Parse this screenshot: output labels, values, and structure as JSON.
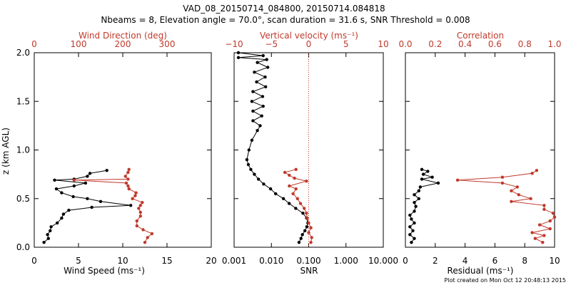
{
  "title": {
    "line1": "VAD_08_20150714_084800, 20150714.084818",
    "line2": "Nbeams = 8, Elevation angle = 70.0°, scan duration = 31.6 s, SNR Threshold = 0.008"
  },
  "footer": "Plot created on Mon Oct 12 20:48:13 2015",
  "colors": {
    "black": "#000000",
    "red": "#c0392b",
    "dotted_red": "#c0392b"
  },
  "chart_data": [
    {
      "type": "line",
      "panel": "wind",
      "ylabel": "z (km AGL)",
      "ylim": [
        0,
        2
      ],
      "yticks": [
        "0.0",
        "0.5",
        "1.0",
        "1.5",
        "2.0"
      ],
      "bottom_axis": {
        "label": "Wind Speed (ms⁻¹)",
        "lim": [
          0,
          20
        ],
        "ticks": [
          "0",
          "5",
          "10",
          "15",
          "20"
        ]
      },
      "top_axis": {
        "label": "Wind Direction (deg)",
        "lim": [
          0,
          400
        ],
        "ticks": [
          "0",
          "100",
          "200",
          "300"
        ]
      },
      "series": [
        {
          "axis": "bottom",
          "color": "#000000",
          "points": [
            [
              1.1,
              0.05
            ],
            [
              1.6,
              0.09
            ],
            [
              1.5,
              0.13
            ],
            [
              1.8,
              0.17
            ],
            [
              1.9,
              0.21
            ],
            [
              2.6,
              0.25
            ],
            [
              3.1,
              0.3
            ],
            [
              3.3,
              0.34
            ],
            [
              3.9,
              0.38
            ],
            [
              6.5,
              0.41
            ],
            [
              10.9,
              0.43
            ],
            [
              7.5,
              0.47
            ],
            [
              6.0,
              0.5
            ],
            [
              4.4,
              0.52
            ],
            [
              3.1,
              0.56
            ],
            [
              2.5,
              0.6
            ],
            [
              4.5,
              0.63
            ],
            [
              5.8,
              0.66
            ],
            [
              2.3,
              0.69
            ],
            [
              4.5,
              0.7
            ],
            [
              6.0,
              0.73
            ],
            [
              6.3,
              0.76
            ],
            [
              8.2,
              0.79
            ]
          ]
        },
        {
          "axis": "top",
          "color": "#c0392b",
          "points": [
            [
              250,
              0.05
            ],
            [
              256,
              0.1
            ],
            [
              266,
              0.14
            ],
            [
              246,
              0.18
            ],
            [
              232,
              0.22
            ],
            [
              232,
              0.27
            ],
            [
              240,
              0.32
            ],
            [
              240,
              0.36
            ],
            [
              236,
              0.4
            ],
            [
              240,
              0.43
            ],
            [
              244,
              0.46
            ],
            [
              222,
              0.5
            ],
            [
              228,
              0.53
            ],
            [
              230,
              0.56
            ],
            [
              214,
              0.6
            ],
            [
              212,
              0.63
            ],
            [
              208,
              0.66
            ],
            [
              90,
              0.69
            ],
            [
              212,
              0.7
            ],
            [
              206,
              0.73
            ],
            [
              212,
              0.77
            ],
            [
              214,
              0.8
            ]
          ]
        }
      ]
    },
    {
      "type": "line",
      "panel": "vertical",
      "ylim": [
        0,
        2
      ],
      "bottom_axis": {
        "label": "SNR",
        "scale": "log",
        "lim": [
          0.001,
          10
        ],
        "ticks": [
          "0.001",
          "0.010",
          "0.100",
          "1.000",
          "10.000"
        ]
      },
      "top_axis": {
        "label": "Vertical velocity (ms⁻¹)",
        "lim": [
          -10,
          10
        ],
        "ticks": [
          "−10",
          "−5",
          "0",
          "5",
          "10"
        ]
      },
      "reference_line": {
        "axis": "top",
        "value": 0,
        "style": "dotted"
      },
      "series": [
        {
          "axis": "bottom",
          "color": "#000000",
          "points": [
            [
              0.055,
              0.05
            ],
            [
              0.062,
              0.09
            ],
            [
              0.068,
              0.13
            ],
            [
              0.079,
              0.17
            ],
            [
              0.089,
              0.21
            ],
            [
              0.095,
              0.25
            ],
            [
              0.088,
              0.3
            ],
            [
              0.07,
              0.35
            ],
            [
              0.045,
              0.4
            ],
            [
              0.03,
              0.45
            ],
            [
              0.021,
              0.5
            ],
            [
              0.013,
              0.55
            ],
            [
              0.0095,
              0.6
            ],
            [
              0.0062,
              0.65
            ],
            [
              0.0045,
              0.7
            ],
            [
              0.0035,
              0.75
            ],
            [
              0.0028,
              0.8
            ],
            [
              0.0024,
              0.85
            ],
            [
              0.0022,
              0.9
            ],
            [
              0.0025,
              1.0
            ],
            [
              0.003,
              1.1
            ],
            [
              0.0042,
              1.2
            ],
            [
              0.005,
              1.25
            ],
            [
              0.0032,
              1.3
            ],
            [
              0.0055,
              1.35
            ],
            [
              0.0032,
              1.4
            ],
            [
              0.006,
              1.45
            ],
            [
              0.003,
              1.5
            ],
            [
              0.0058,
              1.55
            ],
            [
              0.0032,
              1.6
            ],
            [
              0.007,
              1.65
            ],
            [
              0.004,
              1.7
            ],
            [
              0.0068,
              1.75
            ],
            [
              0.0035,
              1.8
            ],
            [
              0.008,
              1.85
            ],
            [
              0.0042,
              1.9
            ],
            [
              0.0075,
              1.93
            ],
            [
              0.0013,
              1.95
            ],
            [
              0.006,
              1.97
            ],
            [
              0.0013,
              2.0
            ]
          ]
        },
        {
          "axis": "top",
          "color": "#c0392b",
          "points": [
            [
              0.3,
              0.05
            ],
            [
              0.4,
              0.1
            ],
            [
              0.0,
              0.15
            ],
            [
              0.3,
              0.2
            ],
            [
              0.0,
              0.25
            ],
            [
              -0.2,
              0.3
            ],
            [
              -0.3,
              0.35
            ],
            [
              -0.6,
              0.4
            ],
            [
              -1.1,
              0.45
            ],
            [
              -1.5,
              0.5
            ],
            [
              -2.1,
              0.55
            ],
            [
              -1.7,
              0.6
            ],
            [
              -2.6,
              0.63
            ],
            [
              -0.3,
              0.68
            ],
            [
              -1.9,
              0.71
            ],
            [
              -2.6,
              0.74
            ],
            [
              -3.2,
              0.77
            ],
            [
              -1.7,
              0.8
            ]
          ]
        }
      ]
    },
    {
      "type": "line",
      "panel": "correlation",
      "ylim": [
        0,
        2
      ],
      "bottom_axis": {
        "label": "Residual (ms⁻¹)",
        "lim": [
          0,
          10
        ],
        "ticks": [
          "0",
          "2",
          "4",
          "6",
          "8",
          "10"
        ]
      },
      "top_axis": {
        "label": "Correlation",
        "lim": [
          0,
          1
        ],
        "ticks": [
          "0.0",
          "0.2",
          "0.4",
          "0.6",
          "0.8",
          "1.0"
        ]
      },
      "series": [
        {
          "axis": "bottom",
          "color": "#000000",
          "points": [
            [
              0.4,
              0.05
            ],
            [
              0.6,
              0.09
            ],
            [
              0.3,
              0.13
            ],
            [
              0.5,
              0.17
            ],
            [
              0.3,
              0.21
            ],
            [
              0.6,
              0.25
            ],
            [
              0.4,
              0.29
            ],
            [
              0.3,
              0.33
            ],
            [
              0.6,
              0.37
            ],
            [
              0.7,
              0.42
            ],
            [
              0.6,
              0.46
            ],
            [
              0.9,
              0.5
            ],
            [
              0.6,
              0.54
            ],
            [
              0.9,
              0.58
            ],
            [
              1.0,
              0.62
            ],
            [
              2.2,
              0.66
            ],
            [
              1.1,
              0.7
            ],
            [
              1.8,
              0.72
            ],
            [
              1.2,
              0.75
            ],
            [
              1.5,
              0.78
            ],
            [
              1.1,
              0.8
            ]
          ]
        },
        {
          "axis": "top",
          "color": "#c0392b",
          "points": [
            [
              0.92,
              0.05
            ],
            [
              0.87,
              0.09
            ],
            [
              0.93,
              0.12
            ],
            [
              0.85,
              0.15
            ],
            [
              0.97,
              0.19
            ],
            [
              0.9,
              0.23
            ],
            [
              0.97,
              0.27
            ],
            [
              1.0,
              0.31
            ],
            [
              0.99,
              0.35
            ],
            [
              0.93,
              0.39
            ],
            [
              0.93,
              0.43
            ],
            [
              0.71,
              0.47
            ],
            [
              0.84,
              0.5
            ],
            [
              0.76,
              0.54
            ],
            [
              0.71,
              0.58
            ],
            [
              0.75,
              0.62
            ],
            [
              0.65,
              0.66
            ],
            [
              0.35,
              0.69
            ],
            [
              0.65,
              0.72
            ],
            [
              0.85,
              0.76
            ],
            [
              0.88,
              0.79
            ]
          ]
        }
      ]
    }
  ]
}
